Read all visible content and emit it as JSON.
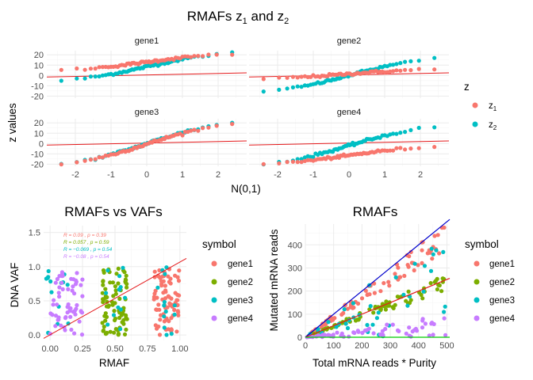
{
  "top": {
    "title_main": "RMAFs z",
    "title_sub1": "1",
    "title_and": " and z",
    "title_sub2": "2",
    "xlabel": "N(0,1)",
    "ylabel": "z values",
    "legend_title": "z",
    "legend": [
      {
        "base": "z",
        "sub": "1",
        "color": "#F8766D"
      },
      {
        "base": "z",
        "sub": "2",
        "color": "#00BFC4"
      }
    ],
    "xticks": [
      "-2",
      "-1",
      "0",
      "1",
      "2"
    ],
    "yticks": [
      "20",
      "10",
      "0",
      "-10",
      "-20"
    ]
  },
  "bl": {
    "title": "RMAFs vs VAFs",
    "xlabel": "RMAF",
    "ylabel": "DNA VAF",
    "legend_title": "symbol",
    "xticks": [
      "0.00",
      "0.25",
      "0.50",
      "0.75",
      "1.00"
    ],
    "yticks": [
      "1.5",
      "1.0",
      "0.5",
      "0.0"
    ],
    "annotations": [
      {
        "text": "R = 0.09 , p = 0.39",
        "color": "#F8766D"
      },
      {
        "text": "R = 0.057 , p = 0.59",
        "color": "#7CAE00"
      },
      {
        "text": "R = −0.069 , p = 0.54",
        "color": "#00BFC4"
      },
      {
        "text": "R = −0.08 , p = 0.54",
        "color": "#C77CFF"
      }
    ]
  },
  "br": {
    "title": "RMAFs",
    "xlabel": "Total mRNA reads * Purity",
    "ylabel": "Mutated mRNA reads",
    "legend_title": "symbol",
    "xticks": [
      "0",
      "100",
      "200",
      "300",
      "400",
      "500"
    ],
    "yticks": [
      "400",
      "300",
      "200",
      "100",
      "0"
    ]
  },
  "symbols": [
    {
      "name": "gene1",
      "color": "#F8766D"
    },
    {
      "name": "gene2",
      "color": "#7CAE00"
    },
    {
      "name": "gene3",
      "color": "#00BFC4"
    },
    {
      "name": "gene4",
      "color": "#C77CFF"
    }
  ],
  "chart_data": [
    {
      "type": "scatter",
      "title": "RMAFs z1 and z2",
      "xlabel": "N(0,1)",
      "ylabel": "z values",
      "facets": [
        "gene1",
        "gene2",
        "gene3",
        "gene4"
      ],
      "xlim": [
        -2.8,
        2.8
      ],
      "ylim": [
        -22,
        24
      ],
      "series": [
        {
          "name": "z1",
          "color": "#F8766D",
          "gene1": {
            "min": 5,
            "max": 21
          },
          "gene2": {
            "min": -3,
            "max": 6
          },
          "gene3": {
            "min": -20,
            "max": 19
          },
          "gene4": {
            "min": -20,
            "max": -3
          },
          "ref_line": {
            "gene1": [
              0,
              0.4
            ],
            "gene2": [
              0,
              0.6
            ],
            "gene3": [
              0,
              0.7
            ],
            "gene4": [
              0,
              0.3
            ]
          }
        },
        {
          "name": "z2",
          "color": "#00BFC4",
          "gene1": {
            "min": -5,
            "max": 22
          },
          "gene2": {
            "min": -16,
            "max": 16
          },
          "gene3": {
            "min": -20,
            "max": 20
          },
          "gene4": {
            "min": -20,
            "max": 16
          }
        }
      ]
    },
    {
      "type": "scatter",
      "title": "RMAFs vs VAFs",
      "xlabel": "RMAF",
      "ylabel": "DNA VAF",
      "xlim": [
        -0.05,
        1.05
      ],
      "ylim": [
        -0.08,
        1.6
      ],
      "identity_line": true,
      "series": [
        {
          "name": "gene1",
          "color": "#F8766D",
          "x_range": [
            0.8,
            1.0
          ],
          "y_range": [
            0.0,
            1.0
          ],
          "n": 80
        },
        {
          "name": "gene2",
          "color": "#7CAE00",
          "x_range": [
            0.4,
            0.6
          ],
          "y_range": [
            0.0,
            1.0
          ],
          "n": 80
        },
        {
          "name": "gene3",
          "color": "#00BFC4",
          "x_range": [
            0.0,
            1.0
          ],
          "y_range": [
            0.0,
            1.0
          ],
          "n": 40
        },
        {
          "name": "gene4",
          "color": "#C77CFF",
          "x_range": [
            0.0,
            0.25
          ],
          "y_range": [
            0.0,
            1.0
          ],
          "n": 60
        }
      ]
    },
    {
      "type": "scatter",
      "title": "RMAFs",
      "xlabel": "Total mRNA reads * Purity",
      "ylabel": "Mutated mRNA reads",
      "xlim": [
        0,
        510
      ],
      "ylim": [
        0,
        490
      ],
      "reference_lines": [
        {
          "slope": 1.0,
          "color": "#0000CC"
        },
        {
          "slope": 0.5,
          "color": "#E41A1C"
        },
        {
          "slope": 0.0,
          "color": "#00CC00"
        }
      ],
      "series": [
        {
          "name": "gene1",
          "color": "#F8766D",
          "ratio_range": [
            0.75,
            1.0
          ],
          "n": 80
        },
        {
          "name": "gene2",
          "color": "#7CAE00",
          "ratio_range": [
            0.4,
            0.55
          ],
          "n": 80
        },
        {
          "name": "gene3",
          "color": "#00BFC4",
          "ratio_range": [
            0.0,
            1.0
          ],
          "n": 40
        },
        {
          "name": "gene4",
          "color": "#C77CFF",
          "ratio_range": [
            0.0,
            0.2
          ],
          "n": 60
        }
      ]
    }
  ]
}
